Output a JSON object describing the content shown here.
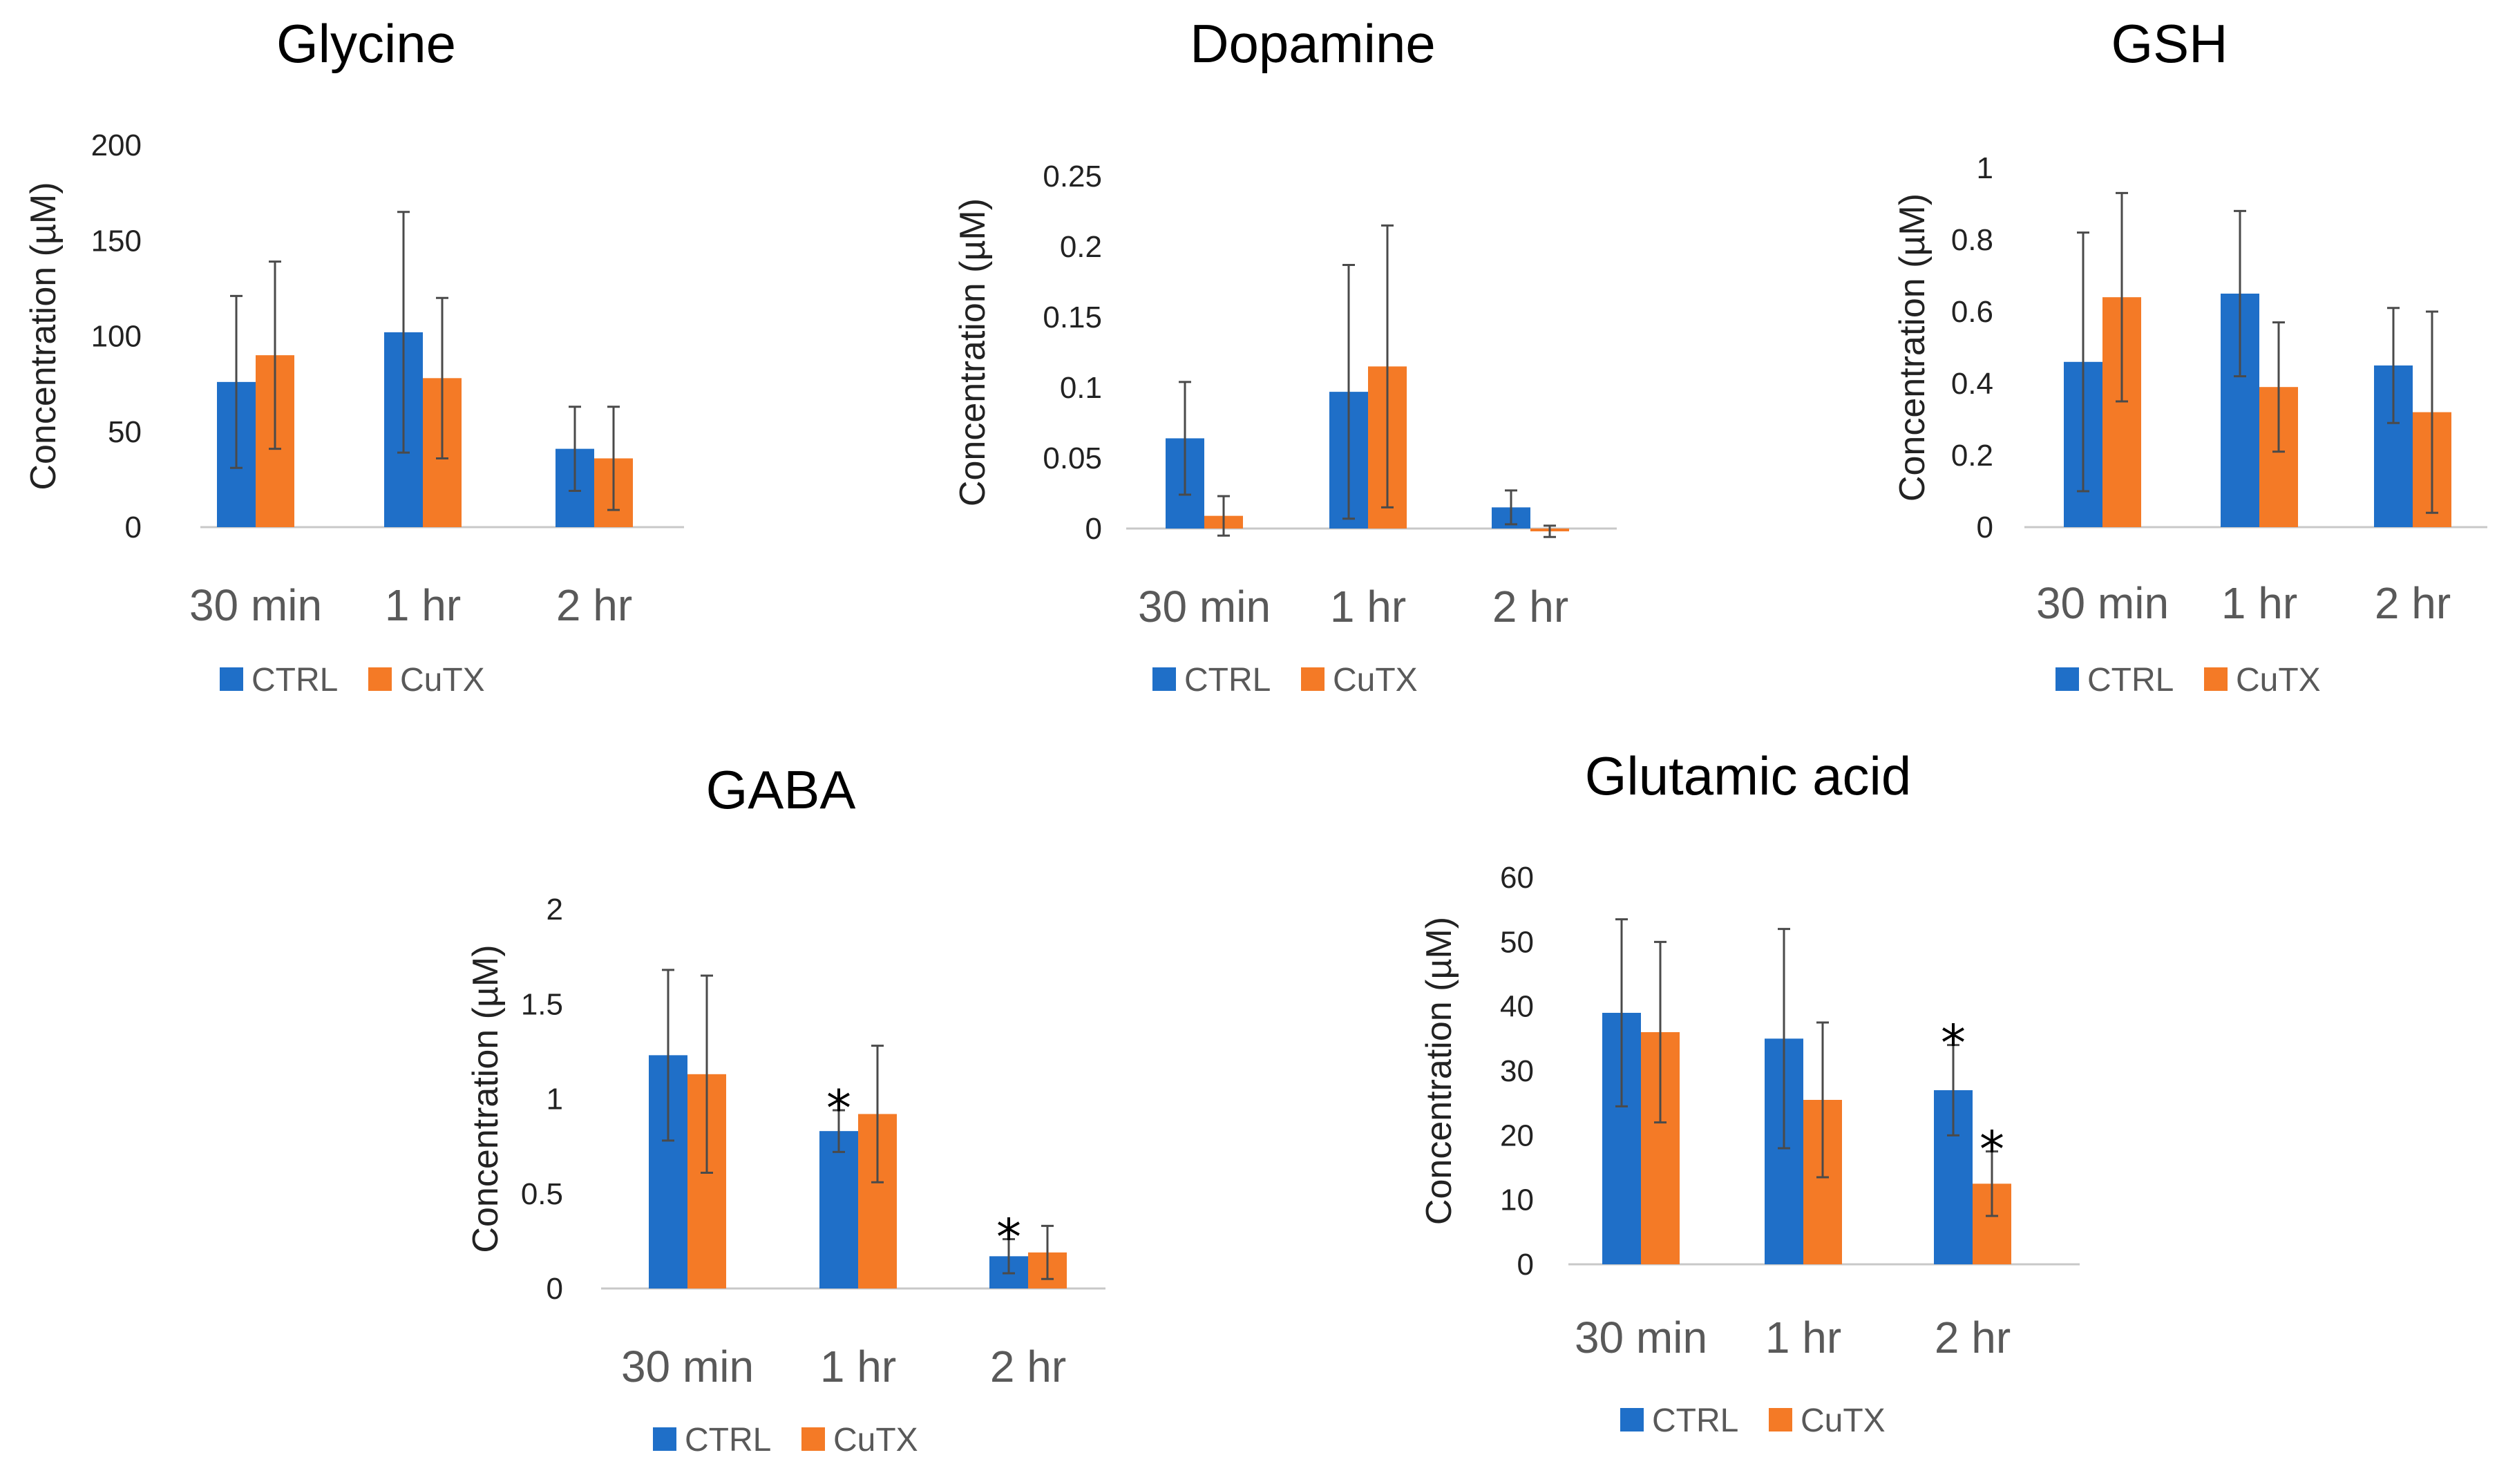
{
  "colors": {
    "ctrl": "#1f6fc8",
    "cutx": "#f47a26",
    "axis": "#c8c8c8",
    "errorbar": "#4a4a4a"
  },
  "chart_data": [
    {
      "type": "bar",
      "title": "Glycine",
      "ylabel": "Concentration (µM)",
      "xlabel": "",
      "categories": [
        "30 min",
        "1 hr",
        "2 hr"
      ],
      "ylim": [
        0,
        200
      ],
      "yticks": [
        "0",
        "50",
        "100",
        "150",
        "200"
      ],
      "grid": false,
      "legend": "bottom",
      "series": [
        {
          "name": "CTRL",
          "color_key": "ctrl",
          "values": [
            76,
            102,
            41
          ],
          "errors": [
            45,
            63,
            22
          ]
        },
        {
          "name": "CuTX",
          "color_key": "cutx",
          "values": [
            90,
            78,
            36
          ],
          "errors": [
            49,
            42,
            27
          ]
        }
      ],
      "annotations": []
    },
    {
      "type": "bar",
      "title": "Dopamine",
      "ylabel": "Concentration (µM)",
      "xlabel": "",
      "categories": [
        "30 min",
        "1 hr",
        "2 hr"
      ],
      "ylim": [
        0,
        0.25
      ],
      "yticks": [
        "0",
        "0.05",
        "0.1",
        "0.15",
        "0.2",
        "0.25"
      ],
      "grid": false,
      "legend": "bottom",
      "series": [
        {
          "name": "CTRL",
          "color_key": "ctrl",
          "values": [
            0.064,
            0.097,
            0.015
          ],
          "errors": [
            0.04,
            0.09,
            0.012
          ]
        },
        {
          "name": "CuTX",
          "color_key": "cutx",
          "values": [
            0.009,
            0.115,
            -0.002
          ],
          "errors": [
            0.014,
            0.1,
            0.004
          ]
        }
      ],
      "annotations": []
    },
    {
      "type": "bar",
      "title": "GSH",
      "ylabel": "Concentration (µM)",
      "xlabel": "",
      "categories": [
        "30 min",
        "1 hr",
        "2 hr"
      ],
      "ylim": [
        0,
        1
      ],
      "yticks": [
        "0",
        "0.2",
        "0.4",
        "0.6",
        "0.8",
        "1"
      ],
      "grid": false,
      "legend": "bottom",
      "series": [
        {
          "name": "CTRL",
          "color_key": "ctrl",
          "values": [
            0.46,
            0.65,
            0.45
          ],
          "errors": [
            0.36,
            0.23,
            0.16
          ]
        },
        {
          "name": "CuTX",
          "color_key": "cutx",
          "values": [
            0.64,
            0.39,
            0.32
          ],
          "errors": [
            0.29,
            0.18,
            0.28
          ]
        }
      ],
      "annotations": []
    },
    {
      "type": "bar",
      "title": "GABA",
      "ylabel": "Concentration (µM)",
      "xlabel": "",
      "categories": [
        "30 min",
        "1 hr",
        "2 hr"
      ],
      "ylim": [
        0,
        2
      ],
      "yticks": [
        "0",
        "0.5",
        "1",
        "1.5",
        "2"
      ],
      "grid": false,
      "legend": "bottom",
      "series": [
        {
          "name": "CTRL",
          "color_key": "ctrl",
          "values": [
            1.23,
            0.83,
            0.17
          ],
          "errors": [
            0.45,
            0.11,
            0.09
          ]
        },
        {
          "name": "CuTX",
          "color_key": "cutx",
          "values": [
            1.13,
            0.92,
            0.19
          ],
          "errors": [
            0.52,
            0.36,
            0.14
          ]
        }
      ],
      "annotations": [
        {
          "series": 0,
          "category": 1,
          "text": "*"
        },
        {
          "series": 0,
          "category": 2,
          "text": "*"
        }
      ]
    },
    {
      "type": "bar",
      "title": "Glutamic acid",
      "ylabel": "Concentration (µM)",
      "xlabel": "",
      "categories": [
        "30 min",
        "1 hr",
        "2 hr"
      ],
      "ylim": [
        0,
        60
      ],
      "yticks": [
        "0",
        "10",
        "20",
        "30",
        "40",
        "50",
        "60"
      ],
      "grid": false,
      "legend": "bottom",
      "series": [
        {
          "name": "CTRL",
          "color_key": "ctrl",
          "values": [
            39,
            35,
            27
          ],
          "errors": [
            14.5,
            17,
            7
          ]
        },
        {
          "name": "CuTX",
          "color_key": "cutx",
          "values": [
            36,
            25.5,
            12.5
          ],
          "errors": [
            14,
            12,
            5
          ]
        }
      ],
      "annotations": [
        {
          "series": 0,
          "category": 2,
          "text": "*"
        },
        {
          "series": 1,
          "category": 2,
          "text": "*"
        }
      ]
    }
  ]
}
